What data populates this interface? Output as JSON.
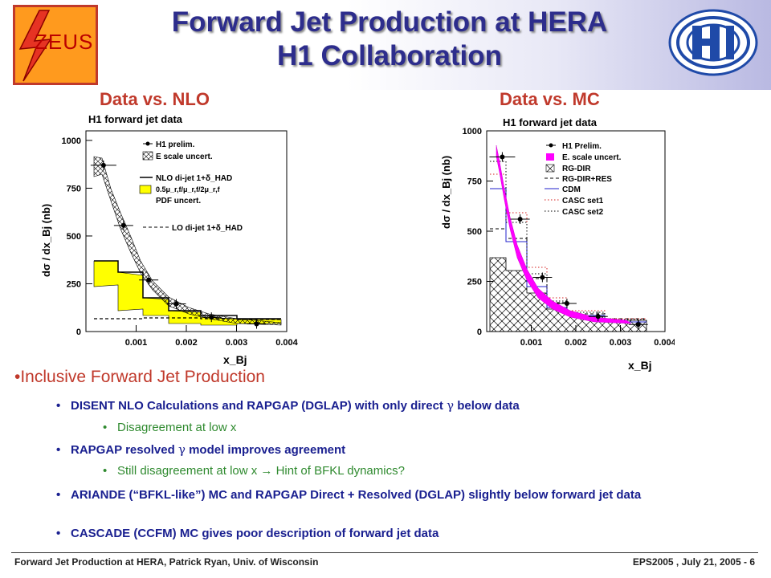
{
  "header": {
    "title_line1": "Forward Jet Production at HERA",
    "title_line2": "H1 Collaboration",
    "zeus_logo_text": "ZEUS",
    "h1_logo_text": "H1"
  },
  "plots": {
    "left_heading": "Data vs. NLO",
    "right_heading": "Data vs. MC"
  },
  "chart_data": [
    {
      "type": "line",
      "title": "H1 forward jet data",
      "xlabel": "x_Bj",
      "ylabel": "dσ / dx_Bj (nb)",
      "xlim": [
        0.0,
        0.004
      ],
      "ylim": [
        0,
        1050
      ],
      "xticks": [
        "0.001",
        "0.002",
        "0.003",
        "0.004"
      ],
      "yticks": [
        "0",
        "250",
        "500",
        "750",
        "1000"
      ],
      "legend": [
        "H1 prelim.",
        "E scale uncert.",
        "NLO di-jet 1+δ_HAD",
        "0.5μ_r,f/μ_r,f/2μ_r,f",
        "PDF uncert.",
        "LO di-jet 1+δ_HAD"
      ],
      "series": [
        {
          "name": "H1 prelim.",
          "x": [
            0.00035,
            0.00075,
            0.00125,
            0.0018,
            0.0025,
            0.0034
          ],
          "y": [
            870,
            555,
            270,
            145,
            75,
            40
          ]
        },
        {
          "name": "NLO di-jet 1+δ_HAD",
          "x": [
            0.0001,
            0.0005,
            0.001,
            0.0015,
            0.0021,
            0.003,
            0.0039
          ],
          "y": [
            360,
            290,
            190,
            110,
            70,
            45,
            40
          ]
        },
        {
          "name": "LO di-jet 1+δ_HAD",
          "x": [
            0.0001,
            0.0005,
            0.001,
            0.0015,
            0.0021,
            0.003,
            0.0039
          ],
          "y": [
            20,
            22,
            22,
            22,
            18,
            15,
            12
          ]
        }
      ]
    },
    {
      "type": "line",
      "title": "H1 forward jet data",
      "xlabel": "x_Bj",
      "ylabel": "dσ / dx_Bj (nb)",
      "xlim": [
        0.0,
        0.004
      ],
      "ylim": [
        0,
        1000
      ],
      "xticks": [
        "0.001",
        "0.002",
        "0.003",
        "0.004"
      ],
      "yticks": [
        "0",
        "250",
        "500",
        "750",
        "1000"
      ],
      "legend": [
        "H1 Prelim.",
        "E. scale uncert.",
        "RG-DIR",
        "RG-DIR+RES",
        "CDM",
        "CASC set1",
        "CASC set2"
      ],
      "series": [
        {
          "name": "H1 Prelim.",
          "x": [
            0.00035,
            0.00075,
            0.00125,
            0.0018,
            0.0025,
            0.0034
          ],
          "y": [
            870,
            560,
            270,
            140,
            75,
            35
          ]
        },
        {
          "name": "RG-DIR",
          "x": [
            0.0001,
            0.0005,
            0.001,
            0.0015,
            0.0021,
            0.003,
            0.0039
          ],
          "y": [
            365,
            305,
            175,
            115,
            80,
            55,
            45
          ]
        }
      ]
    }
  ],
  "bullets": {
    "main": "•Inclusive Forward Jet Production",
    "b1_pre": "DISENT NLO Calculations and RAPGAP (DGLAP) with only direct",
    "b1_sym": "γ",
    "b1_post": "below data",
    "b1_sub": "Disagreement at low x",
    "b2_pre": "RAPGAP resolved",
    "b2_sym": "γ",
    "b2_post": "model improves agreement",
    "b2_sub_pre": "Still disagreement at low x",
    "b2_sub_arrow": "→",
    "b2_sub_post": "Hint of BFKL dynamics?",
    "b3": "ARIANDE (“BFKL-like”) MC and RAPGAP Direct + Resolved (DGLAP) slightly below forward jet data",
    "b4": "CASCADE (CCFM) MC gives poor description of forward jet data"
  },
  "footer": {
    "left": "Forward Jet Production at HERA, Patrick Ryan, Univ. of Wisconsin",
    "right": "EPS2005 , July 21, 2005 - 6"
  },
  "colors": {
    "title": "#2d2d8c",
    "heading_red": "#c0392b",
    "bullet_blue": "#1a2090",
    "sub_green": "#2f8a2f",
    "nlo_band": "#ffff00",
    "mc_band": "#ff00ff"
  }
}
